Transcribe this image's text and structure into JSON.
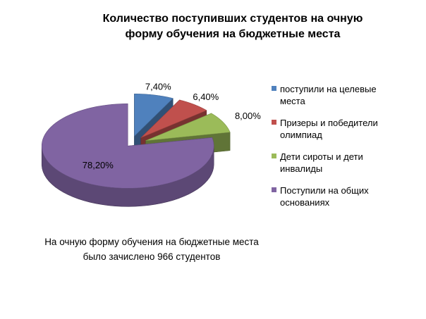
{
  "chart_data": {
    "type": "pie",
    "title_line1": "Количество поступивших студентов на очную",
    "title_line2": "форму обучения на бюджетные места",
    "categories": [
      "поступили на целевые места",
      "Призеры и победители олимпиад",
      "Дети сироты и дети инвалиды",
      "Поступили на общих основаниях"
    ],
    "values": [
      7.4,
      6.4,
      8.0,
      78.2
    ],
    "data_labels": [
      "7,40%",
      "6,40%",
      "8,00%",
      "78,20%"
    ],
    "colors": [
      "#4f81bd",
      "#c0504d",
      "#9bbb59",
      "#8064a2"
    ],
    "legend": [
      {
        "line1": "поступили на целевые",
        "line2": "места"
      },
      {
        "line1": "Призеры и победители",
        "line2": "олимпиад"
      },
      {
        "line1": "Дети сироты и дети",
        "line2": "инвалиды"
      },
      {
        "line1": "Поступили на общих",
        "line2": "основаниях"
      }
    ],
    "legend_position": "right",
    "style": "3d exploded pie"
  },
  "note": {
    "line1": "На очную форму обучения на бюджетные места",
    "line2": "было зачислено 966 студентов"
  }
}
